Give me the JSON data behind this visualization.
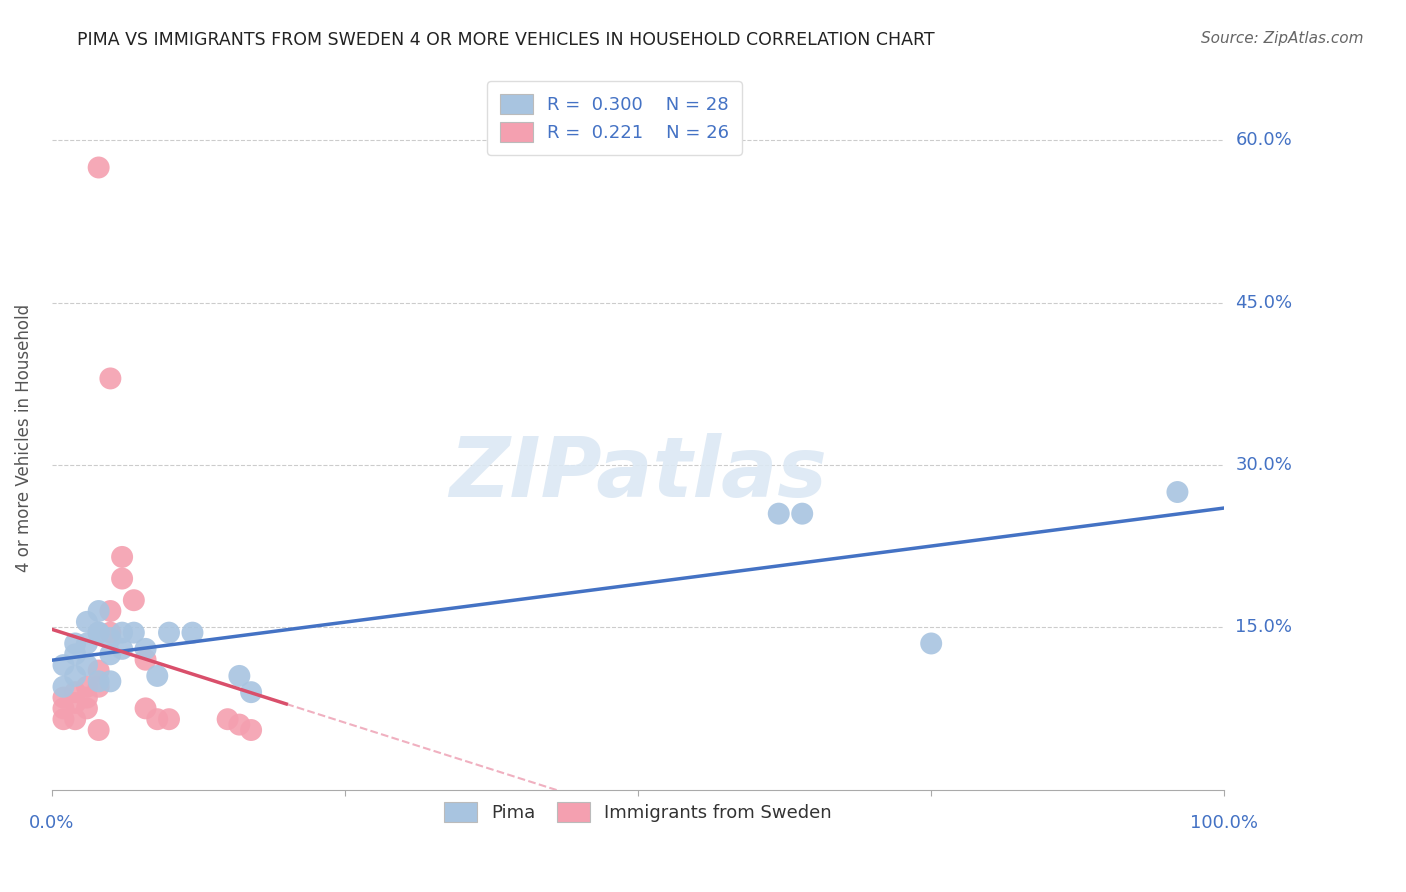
{
  "title": "PIMA VS IMMIGRANTS FROM SWEDEN 4 OR MORE VEHICLES IN HOUSEHOLD CORRELATION CHART",
  "source": "Source: ZipAtlas.com",
  "ylabel": "4 or more Vehicles in Household",
  "xmin": 0.0,
  "xmax": 1.0,
  "ymin": 0.0,
  "ymax": 0.65,
  "xticks": [
    0.0,
    0.25,
    0.5,
    0.75,
    1.0
  ],
  "ytick_positions": [
    0.15,
    0.3,
    0.45,
    0.6
  ],
  "ytick_labels": [
    "15.0%",
    "30.0%",
    "45.0%",
    "60.0%"
  ],
  "pima_R": 0.3,
  "pima_N": 28,
  "sweden_R": 0.221,
  "sweden_N": 26,
  "pima_color": "#a8c4e0",
  "sweden_color": "#f4a0b0",
  "pima_line_color": "#4472c4",
  "sweden_line_color": "#d94f6b",
  "sweden_dash_color": "#f0b0c0",
  "label_color": "#4472c4",
  "watermark": "ZIPatlas",
  "pima_x": [
    0.01,
    0.01,
    0.02,
    0.02,
    0.02,
    0.03,
    0.03,
    0.03,
    0.04,
    0.04,
    0.04,
    0.04,
    0.05,
    0.05,
    0.05,
    0.06,
    0.06,
    0.07,
    0.08,
    0.09,
    0.1,
    0.12,
    0.16,
    0.17,
    0.62,
    0.64,
    0.75,
    0.96
  ],
  "pima_y": [
    0.095,
    0.115,
    0.105,
    0.125,
    0.135,
    0.135,
    0.155,
    0.115,
    0.145,
    0.165,
    0.145,
    0.1,
    0.14,
    0.125,
    0.1,
    0.145,
    0.13,
    0.145,
    0.13,
    0.105,
    0.145,
    0.145,
    0.105,
    0.09,
    0.255,
    0.255,
    0.135,
    0.275
  ],
  "sweden_x": [
    0.01,
    0.01,
    0.01,
    0.02,
    0.02,
    0.02,
    0.03,
    0.03,
    0.03,
    0.04,
    0.04,
    0.04,
    0.05,
    0.05,
    0.06,
    0.06,
    0.07,
    0.08,
    0.08,
    0.09,
    0.1,
    0.15,
    0.16,
    0.17,
    0.05,
    0.04
  ],
  "sweden_y": [
    0.065,
    0.075,
    0.085,
    0.065,
    0.08,
    0.09,
    0.075,
    0.085,
    0.095,
    0.11,
    0.095,
    0.055,
    0.165,
    0.145,
    0.195,
    0.215,
    0.175,
    0.12,
    0.075,
    0.065,
    0.065,
    0.065,
    0.06,
    0.055,
    0.38,
    0.575
  ]
}
